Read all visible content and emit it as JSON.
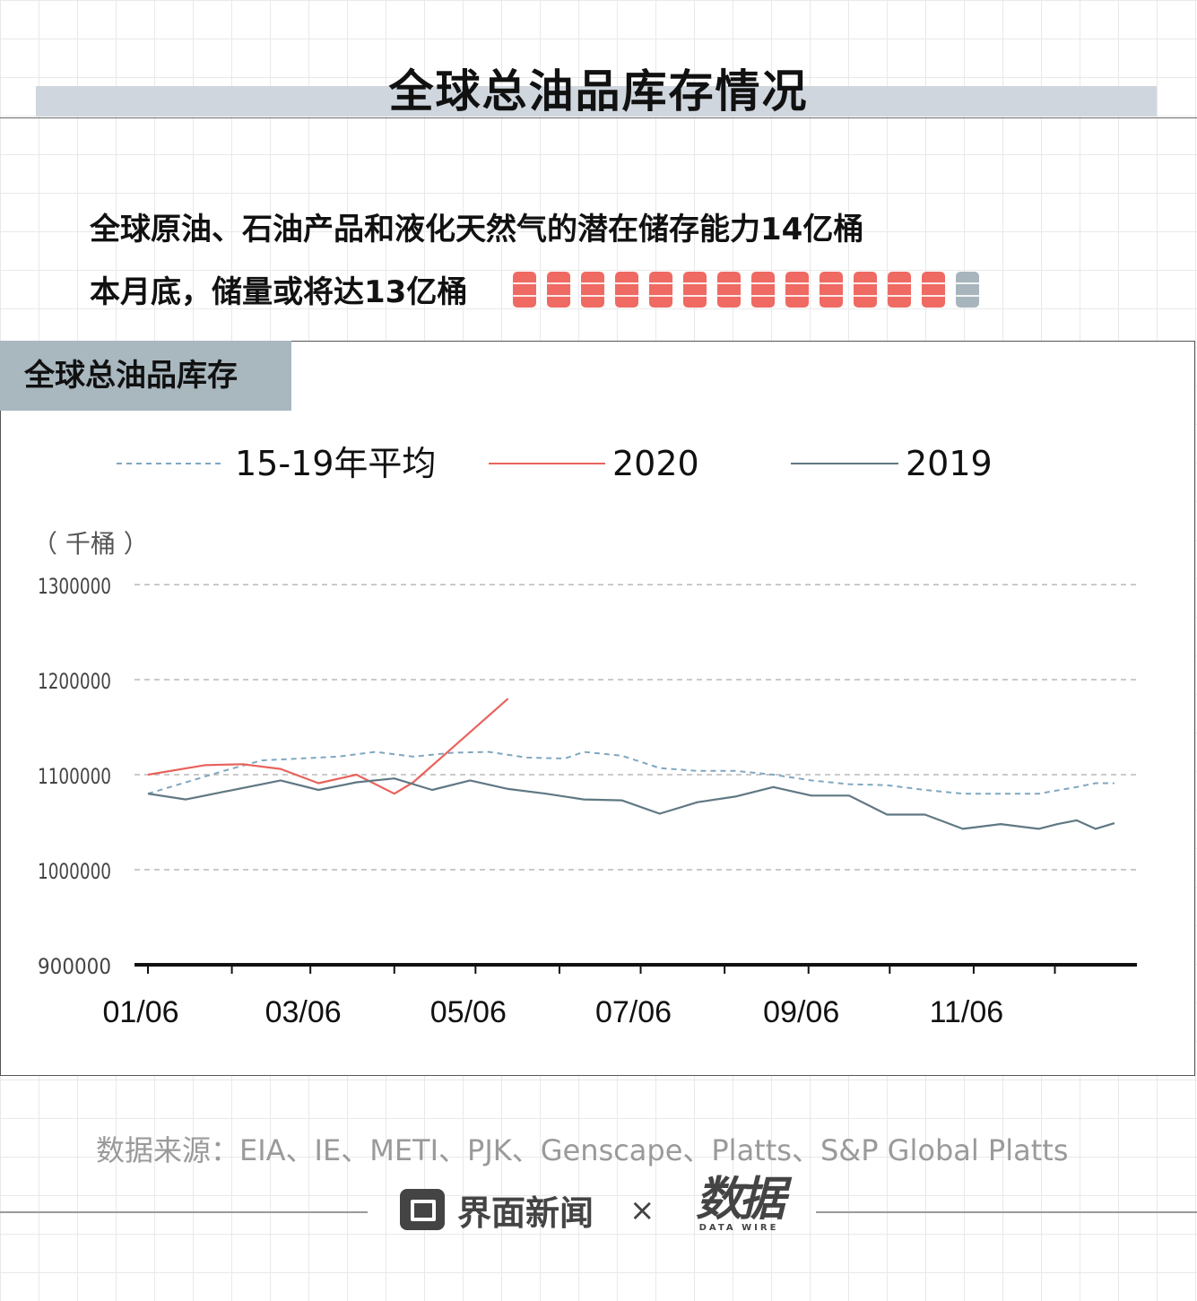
{
  "page": {
    "title": "全球总油品库存情况",
    "headline1": "全球原油、石油产品和液化天然气的潜在储存能力14亿桶",
    "headline2": "本月底，储量或将达13亿桶",
    "barrels": {
      "count": 14,
      "filled": 13,
      "filled_color": "#ef6a63",
      "empty_color": "#a8b5bd"
    },
    "panel_title": "全球总油品库存",
    "source": "数据来源：EIA、IE、METI、PJK、Genscape、Platts、S&P Global Platts",
    "brand": {
      "name": "界面新闻",
      "times": "×",
      "partner_mark": "数据",
      "partner_sub": "DATA WIRE"
    }
  },
  "chart_data": {
    "type": "line",
    "unit_label": "（ 千桶 ）",
    "xlabel": "",
    "ylabel": "",
    "x_ticks": [
      "01/06",
      "03/06",
      "05/06",
      "07/06",
      "09/06",
      "11/06"
    ],
    "x_range": [
      "2020-01-06",
      "2021-01-01"
    ],
    "y_ticks": [
      900000,
      1000000,
      1100000,
      1200000,
      1300000
    ],
    "ylim": [
      900000,
      1300000
    ],
    "grid": "horizontal dashed",
    "legend_position": "top",
    "series": [
      {
        "name": "15-19年平均",
        "color": "#7fa7bf",
        "style": "dashed",
        "points": [
          [
            "2020-01-06",
            1080000
          ],
          [
            "2020-01-20",
            1092000
          ],
          [
            "2020-02-03",
            1104000
          ],
          [
            "2020-02-17",
            1115000
          ],
          [
            "2020-03-02",
            1117000
          ],
          [
            "2020-03-16",
            1119000
          ],
          [
            "2020-03-30",
            1124000
          ],
          [
            "2020-04-13",
            1119000
          ],
          [
            "2020-04-27",
            1123000
          ],
          [
            "2020-05-11",
            1124000
          ],
          [
            "2020-05-25",
            1118000
          ],
          [
            "2020-06-08",
            1117000
          ],
          [
            "2020-06-15",
            1124000
          ],
          [
            "2020-06-29",
            1120000
          ],
          [
            "2020-07-13",
            1107000
          ],
          [
            "2020-07-27",
            1104000
          ],
          [
            "2020-08-10",
            1104000
          ],
          [
            "2020-08-24",
            1100000
          ],
          [
            "2020-09-07",
            1094000
          ],
          [
            "2020-09-21",
            1090000
          ],
          [
            "2020-10-05",
            1089000
          ],
          [
            "2020-10-19",
            1084000
          ],
          [
            "2020-11-02",
            1080000
          ],
          [
            "2020-11-16",
            1080000
          ],
          [
            "2020-11-30",
            1080000
          ],
          [
            "2020-12-14",
            1087000
          ],
          [
            "2020-12-21",
            1091000
          ],
          [
            "2020-12-28",
            1091000
          ]
        ]
      },
      {
        "name": "2020",
        "color": "#e8625c",
        "style": "solid",
        "points": [
          [
            "2020-01-06",
            1100000
          ],
          [
            "2020-01-27",
            1110000
          ],
          [
            "2020-02-10",
            1111000
          ],
          [
            "2020-02-24",
            1106000
          ],
          [
            "2020-03-09",
            1091000
          ],
          [
            "2020-03-23",
            1100000
          ],
          [
            "2020-04-06",
            1080000
          ],
          [
            "2020-04-13",
            1092000
          ],
          [
            "2020-05-18",
            1180000
          ]
        ]
      },
      {
        "name": "2019",
        "color": "#5f7883",
        "style": "solid",
        "points": [
          [
            "2020-01-06",
            1080000
          ],
          [
            "2020-01-20",
            1074000
          ],
          [
            "2020-02-03",
            1082000
          ],
          [
            "2020-02-24",
            1094000
          ],
          [
            "2020-03-09",
            1084000
          ],
          [
            "2020-03-23",
            1092000
          ],
          [
            "2020-04-06",
            1096000
          ],
          [
            "2020-04-20",
            1084000
          ],
          [
            "2020-05-04",
            1094000
          ],
          [
            "2020-05-18",
            1085000
          ],
          [
            "2020-06-01",
            1080000
          ],
          [
            "2020-06-15",
            1074000
          ],
          [
            "2020-06-29",
            1073000
          ],
          [
            "2020-07-13",
            1059000
          ],
          [
            "2020-07-27",
            1071000
          ],
          [
            "2020-08-10",
            1077000
          ],
          [
            "2020-08-24",
            1087000
          ],
          [
            "2020-09-07",
            1078000
          ],
          [
            "2020-09-21",
            1078000
          ],
          [
            "2020-10-05",
            1058000
          ],
          [
            "2020-10-19",
            1058000
          ],
          [
            "2020-11-02",
            1043000
          ],
          [
            "2020-11-16",
            1048000
          ],
          [
            "2020-11-30",
            1043000
          ],
          [
            "2020-12-07",
            1048000
          ],
          [
            "2020-12-14",
            1052000
          ],
          [
            "2020-12-21",
            1043000
          ],
          [
            "2020-12-28",
            1049000
          ]
        ]
      }
    ]
  }
}
